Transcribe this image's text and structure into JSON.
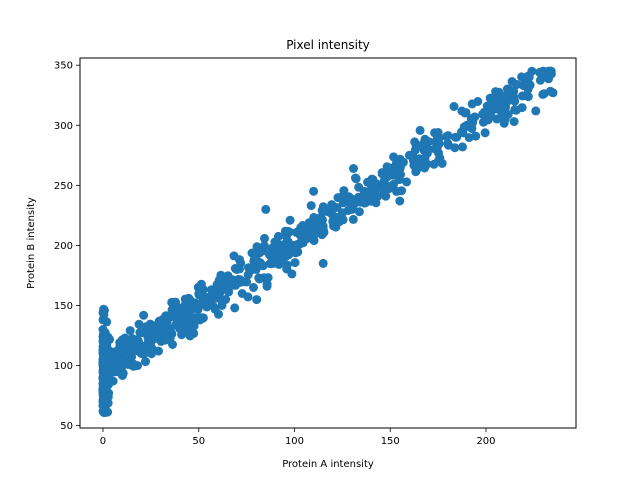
{
  "chart_data": {
    "type": "scatter",
    "title": "Pixel intensity",
    "xlabel": "Protein A intensity",
    "ylabel": "Protein B intensity",
    "xlim": [
      -12,
      247
    ],
    "ylim": [
      48,
      356
    ],
    "xticks": [
      0,
      50,
      100,
      150,
      200
    ],
    "yticks": [
      50,
      100,
      150,
      200,
      250,
      300,
      350
    ],
    "grid": false,
    "legend": "none",
    "point_color": "#1f77b4",
    "sample_points": [
      {
        "x": 0,
        "y": 62
      },
      {
        "x": 0,
        "y": 70
      },
      {
        "x": 0,
        "y": 80
      },
      {
        "x": 0,
        "y": 90
      },
      {
        "x": 0,
        "y": 100
      },
      {
        "x": 0,
        "y": 110
      },
      {
        "x": 0,
        "y": 120
      },
      {
        "x": 0,
        "y": 130
      },
      {
        "x": 0,
        "y": 138
      },
      {
        "x": 0,
        "y": 144
      },
      {
        "x": 10,
        "y": 100
      },
      {
        "x": 15,
        "y": 120
      },
      {
        "x": 20,
        "y": 110
      },
      {
        "x": 30,
        "y": 130
      },
      {
        "x": 40,
        "y": 140
      },
      {
        "x": 50,
        "y": 150
      },
      {
        "x": 60,
        "y": 160
      },
      {
        "x": 70,
        "y": 170
      },
      {
        "x": 80,
        "y": 180
      },
      {
        "x": 85,
        "y": 230
      },
      {
        "x": 90,
        "y": 190
      },
      {
        "x": 100,
        "y": 200
      },
      {
        "x": 110,
        "y": 245
      },
      {
        "x": 115,
        "y": 185
      },
      {
        "x": 120,
        "y": 220
      },
      {
        "x": 130,
        "y": 230
      },
      {
        "x": 140,
        "y": 245
      },
      {
        "x": 150,
        "y": 260
      },
      {
        "x": 155,
        "y": 237
      },
      {
        "x": 160,
        "y": 275
      },
      {
        "x": 170,
        "y": 280
      },
      {
        "x": 180,
        "y": 285
      },
      {
        "x": 190,
        "y": 300
      },
      {
        "x": 200,
        "y": 310
      },
      {
        "x": 205,
        "y": 328
      },
      {
        "x": 210,
        "y": 305
      },
      {
        "x": 215,
        "y": 320
      },
      {
        "x": 222,
        "y": 330
      },
      {
        "x": 226,
        "y": 312
      },
      {
        "x": 228,
        "y": 344
      },
      {
        "x": 235,
        "y": 327
      }
    ],
    "trend": {
      "slope": 1.07,
      "intercept": 97
    },
    "n_generated_points": 900
  }
}
